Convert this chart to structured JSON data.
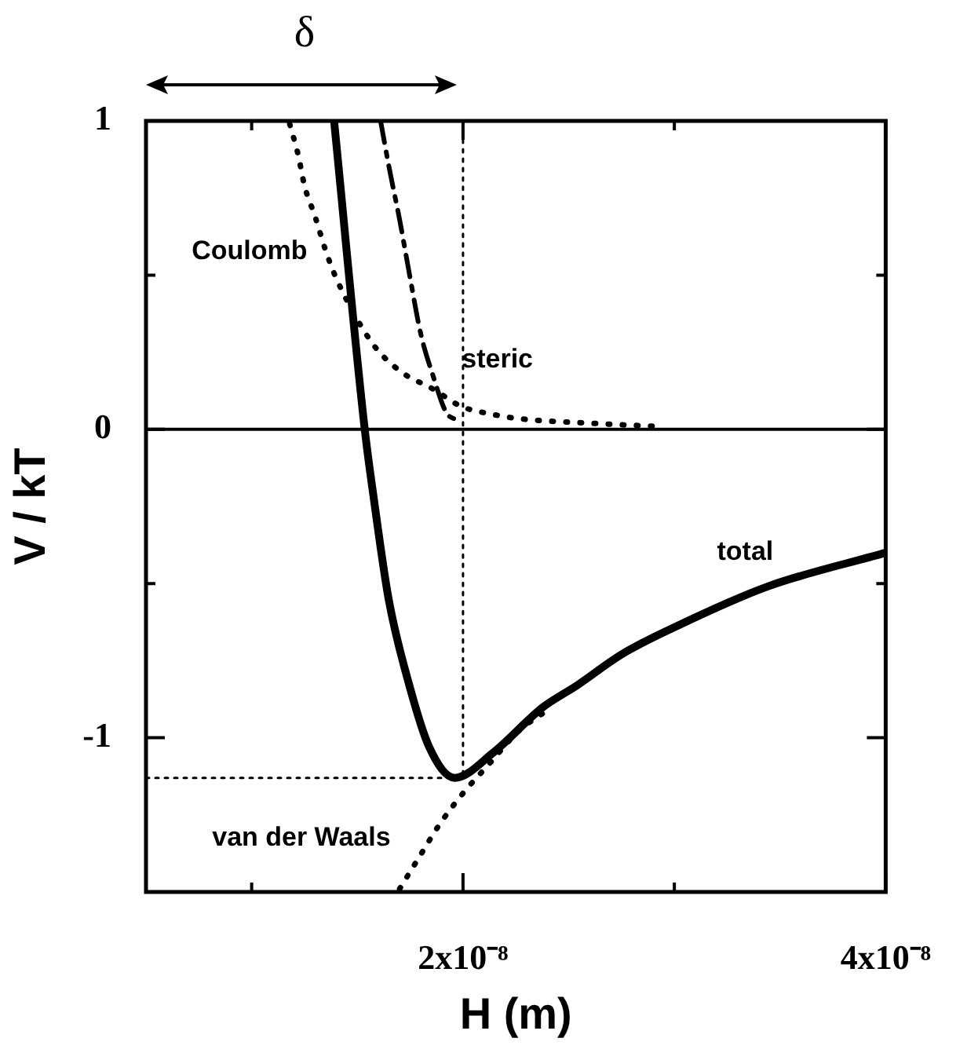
{
  "chart_data": {
    "type": "line",
    "xlabel": "H (m)",
    "ylabel": "V / kT",
    "xlim": [
      5e-09,
      4e-08
    ],
    "xticks": [
      {
        "value": 1e-08,
        "label": null
      },
      {
        "value": 2e-08,
        "label": "2x10⁻⁸"
      },
      {
        "value": 3e-08,
        "label": null
      },
      {
        "value": 4e-08,
        "label": "4x10⁻⁸"
      }
    ],
    "ylim": [
      -1.5,
      1
    ],
    "yticks": [
      {
        "value": -1.5,
        "label": null
      },
      {
        "value": -1,
        "label": "-1"
      },
      {
        "value": -0.5,
        "label": null
      },
      {
        "value": 0,
        "label": "0"
      },
      {
        "value": 0.5,
        "label": null
      },
      {
        "value": 1,
        "label": "1"
      }
    ],
    "grid": false,
    "legend": false,
    "marker": "none",
    "series": [
      {
        "name": "total",
        "color": "#000000",
        "line_style": "solid",
        "x": [
          1.39e-08,
          1.535e-08,
          1.577e-08,
          1.648e-08,
          1.746e-08,
          1.84e-08,
          1.96e-08,
          2.14e-08,
          2.38e-08,
          2.54e-08,
          2.75e-08,
          2.96e-08,
          3.44e-08,
          4e-08
        ],
        "values": [
          1,
          0,
          -0.22,
          -0.55,
          -0.83,
          -1.03,
          -1.13,
          -1.05,
          -0.9,
          -0.83,
          -0.73,
          -0.655,
          -0.51,
          -0.4
        ]
      },
      {
        "name": "van der Waals",
        "color": "#000000",
        "line_style": "dotted",
        "x": [
          1.7e-08,
          1.79e-08,
          1.89e-08,
          2e-08,
          2.13e-08,
          2.26e-08,
          2.4e-08
        ],
        "values": [
          -1.49,
          -1.39,
          -1.28,
          -1.18,
          -1.08,
          -0.98,
          -0.91
        ]
      },
      {
        "name": "Coulomb",
        "color": "#000000",
        "line_style": "dotted",
        "x": [
          1.18e-08,
          1.22e-08,
          1.25e-08,
          1.3e-08,
          1.35e-08,
          1.4e-08,
          1.57e-08,
          1.7e-08,
          1.86e-08,
          1.99e-08,
          2.13e-08,
          2.26e-08,
          2.6e-08,
          2.9e-08
        ],
        "values": [
          0.99,
          0.89,
          0.79,
          0.69,
          0.58,
          0.49,
          0.28,
          0.19,
          0.13,
          0.075,
          0.05,
          0.035,
          0.02,
          0.01
        ]
      },
      {
        "name": "steric",
        "color": "#000000",
        "line_style": "dashed",
        "x": [
          1.61e-08,
          1.65e-08,
          1.7e-08,
          1.75e-08,
          1.8e-08,
          1.86e-08,
          1.92e-08,
          1.97e-08
        ],
        "values": [
          1,
          0.85,
          0.68,
          0.49,
          0.31,
          0.17,
          0.055,
          0.03
        ]
      },
      {
        "color": "#000000",
        "line_style": "dotted",
        "x": [
          2e-08,
          2e-08
        ],
        "values": [
          1,
          -1.13
        ]
      },
      {
        "color": "#000000",
        "line_style": "dotted",
        "x": [
          5e-09,
          1.96e-08
        ],
        "values": [
          -1.13,
          -1.13
        ]
      }
    ],
    "ref_lines": [
      {
        "axis": "y",
        "value": 0,
        "color": "#000000",
        "line_style": "solid"
      }
    ],
    "annotations": [
      "δ"
    ]
  }
}
